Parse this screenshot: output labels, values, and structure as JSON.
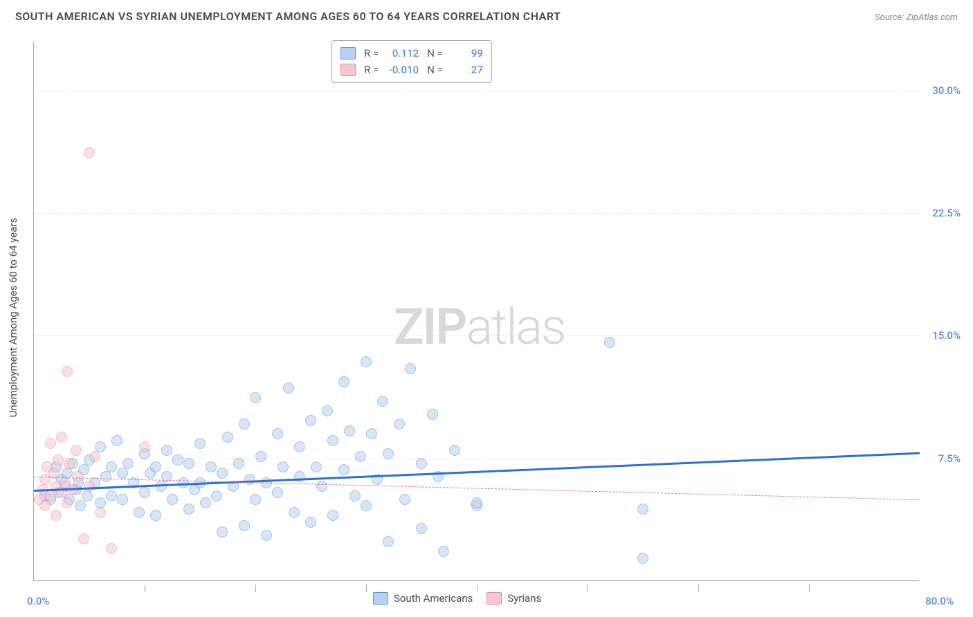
{
  "title": "SOUTH AMERICAN VS SYRIAN UNEMPLOYMENT AMONG AGES 60 TO 64 YEARS CORRELATION CHART",
  "source": "Source: ZipAtlas.com",
  "watermark": {
    "bold": "ZIP",
    "light": "atlas"
  },
  "chart": {
    "type": "scatter",
    "y_label": "Unemployment Among Ages 60 to 64 years",
    "xlim": [
      0,
      80
    ],
    "ylim": [
      0,
      33
    ],
    "x_min_label": "0.0%",
    "x_max_label": "80.0%",
    "x_tick_step": 10,
    "y_ticks": [
      {
        "v": 7.5,
        "label": "7.5%"
      },
      {
        "v": 15.0,
        "label": "15.0%"
      },
      {
        "v": 22.5,
        "label": "22.5%"
      },
      {
        "v": 30.0,
        "label": "30.0%"
      }
    ],
    "axis_label_color": "#5b8dd6",
    "grid_color": "#e5e5e5",
    "marker_radius": 8,
    "marker_opacity": 0.55,
    "top_legend": [
      {
        "series": 0,
        "r_label": "R =",
        "r": "0.112",
        "n_label": "N =",
        "n": "99"
      },
      {
        "series": 1,
        "r_label": "R =",
        "r": "-0.010",
        "n_label": "N =",
        "n": "27"
      }
    ],
    "bottom_legend": [
      {
        "series": 0,
        "label": "South Americans"
      },
      {
        "series": 1,
        "label": "Syrians"
      }
    ],
    "series": [
      {
        "name": "South Americans",
        "fill": "#b7d2f0",
        "stroke": "#5b8dd6",
        "trend_color": "#2f6fd0",
        "trend": {
          "x1": 0,
          "y1": 5.6,
          "x2": 80,
          "y2": 7.9,
          "solid": true
        },
        "points": [
          [
            1.0,
            5.2
          ],
          [
            1.5,
            5.0
          ],
          [
            2.0,
            7.0
          ],
          [
            2.2,
            5.4
          ],
          [
            2.5,
            6.2
          ],
          [
            2.8,
            5.8
          ],
          [
            3.0,
            6.6
          ],
          [
            3.2,
            5.0
          ],
          [
            3.5,
            7.2
          ],
          [
            3.8,
            5.6
          ],
          [
            4.0,
            6.0
          ],
          [
            4.2,
            4.6
          ],
          [
            4.5,
            6.8
          ],
          [
            4.8,
            5.2
          ],
          [
            5.0,
            7.4
          ],
          [
            5.5,
            6.0
          ],
          [
            6.0,
            4.8
          ],
          [
            6.0,
            8.2
          ],
          [
            6.5,
            6.4
          ],
          [
            7.0,
            7.0
          ],
          [
            7.0,
            5.2
          ],
          [
            7.5,
            8.6
          ],
          [
            8.0,
            6.6
          ],
          [
            8.0,
            5.0
          ],
          [
            8.5,
            7.2
          ],
          [
            9.0,
            6.0
          ],
          [
            9.5,
            4.2
          ],
          [
            10.0,
            7.8
          ],
          [
            10.0,
            5.4
          ],
          [
            10.5,
            6.6
          ],
          [
            11.0,
            7.0
          ],
          [
            11.0,
            4.0
          ],
          [
            11.5,
            5.8
          ],
          [
            12.0,
            6.4
          ],
          [
            12.0,
            8.0
          ],
          [
            12.5,
            5.0
          ],
          [
            13.0,
            7.4
          ],
          [
            13.5,
            6.0
          ],
          [
            14.0,
            4.4
          ],
          [
            14.0,
            7.2
          ],
          [
            14.5,
            5.6
          ],
          [
            15.0,
            8.4
          ],
          [
            15.0,
            6.0
          ],
          [
            15.5,
            4.8
          ],
          [
            16.0,
            7.0
          ],
          [
            16.5,
            5.2
          ],
          [
            17.0,
            6.6
          ],
          [
            17.0,
            3.0
          ],
          [
            17.5,
            8.8
          ],
          [
            18.0,
            5.8
          ],
          [
            18.5,
            7.2
          ],
          [
            19.0,
            3.4
          ],
          [
            19.0,
            9.6
          ],
          [
            19.5,
            6.2
          ],
          [
            20.0,
            5.0
          ],
          [
            20.0,
            11.2
          ],
          [
            20.5,
            7.6
          ],
          [
            21.0,
            6.0
          ],
          [
            21.0,
            2.8
          ],
          [
            22.0,
            9.0
          ],
          [
            22.0,
            5.4
          ],
          [
            22.5,
            7.0
          ],
          [
            23.0,
            11.8
          ],
          [
            23.5,
            4.2
          ],
          [
            24.0,
            8.2
          ],
          [
            24.0,
            6.4
          ],
          [
            25.0,
            9.8
          ],
          [
            25.0,
            3.6
          ],
          [
            25.5,
            7.0
          ],
          [
            26.0,
            5.8
          ],
          [
            26.5,
            10.4
          ],
          [
            27.0,
            8.6
          ],
          [
            27.0,
            4.0
          ],
          [
            28.0,
            6.8
          ],
          [
            28.0,
            12.2
          ],
          [
            28.5,
            9.2
          ],
          [
            29.0,
            5.2
          ],
          [
            29.5,
            7.6
          ],
          [
            30.0,
            13.4
          ],
          [
            30.0,
            4.6
          ],
          [
            30.5,
            9.0
          ],
          [
            31.0,
            6.2
          ],
          [
            31.5,
            11.0
          ],
          [
            32.0,
            7.8
          ],
          [
            32.0,
            2.4
          ],
          [
            33.0,
            9.6
          ],
          [
            33.5,
            5.0
          ],
          [
            34.0,
            13.0
          ],
          [
            35.0,
            7.2
          ],
          [
            35.0,
            3.2
          ],
          [
            36.0,
            10.2
          ],
          [
            36.5,
            6.4
          ],
          [
            37.0,
            1.8
          ],
          [
            38.0,
            8.0
          ],
          [
            40.0,
            4.6
          ],
          [
            40.0,
            4.8
          ],
          [
            52.0,
            14.6
          ],
          [
            55.0,
            1.4
          ],
          [
            55.0,
            4.4
          ]
        ]
      },
      {
        "name": "Syrians",
        "fill": "#f6c7d2",
        "stroke": "#e08aa3",
        "trend_color": "#d27a94",
        "trend": {
          "x1": 0,
          "y1": 6.4,
          "x2": 80,
          "y2": 5.0,
          "solid": false
        },
        "points": [
          [
            0.5,
            5.0
          ],
          [
            0.8,
            5.6
          ],
          [
            1.0,
            6.2
          ],
          [
            1.0,
            4.6
          ],
          [
            1.2,
            7.0
          ],
          [
            1.5,
            5.2
          ],
          [
            1.5,
            8.4
          ],
          [
            1.8,
            6.6
          ],
          [
            2.0,
            5.8
          ],
          [
            2.0,
            4.0
          ],
          [
            2.2,
            7.4
          ],
          [
            2.5,
            5.4
          ],
          [
            2.5,
            8.8
          ],
          [
            2.8,
            6.0
          ],
          [
            3.0,
            12.8
          ],
          [
            3.0,
            4.8
          ],
          [
            3.2,
            7.2
          ],
          [
            3.5,
            5.6
          ],
          [
            3.8,
            8.0
          ],
          [
            4.0,
            6.4
          ],
          [
            4.5,
            2.6
          ],
          [
            5.0,
            26.2
          ],
          [
            5.0,
            5.8
          ],
          [
            5.5,
            7.6
          ],
          [
            6.0,
            4.2
          ],
          [
            7.0,
            2.0
          ],
          [
            10.0,
            8.2
          ]
        ]
      }
    ]
  }
}
